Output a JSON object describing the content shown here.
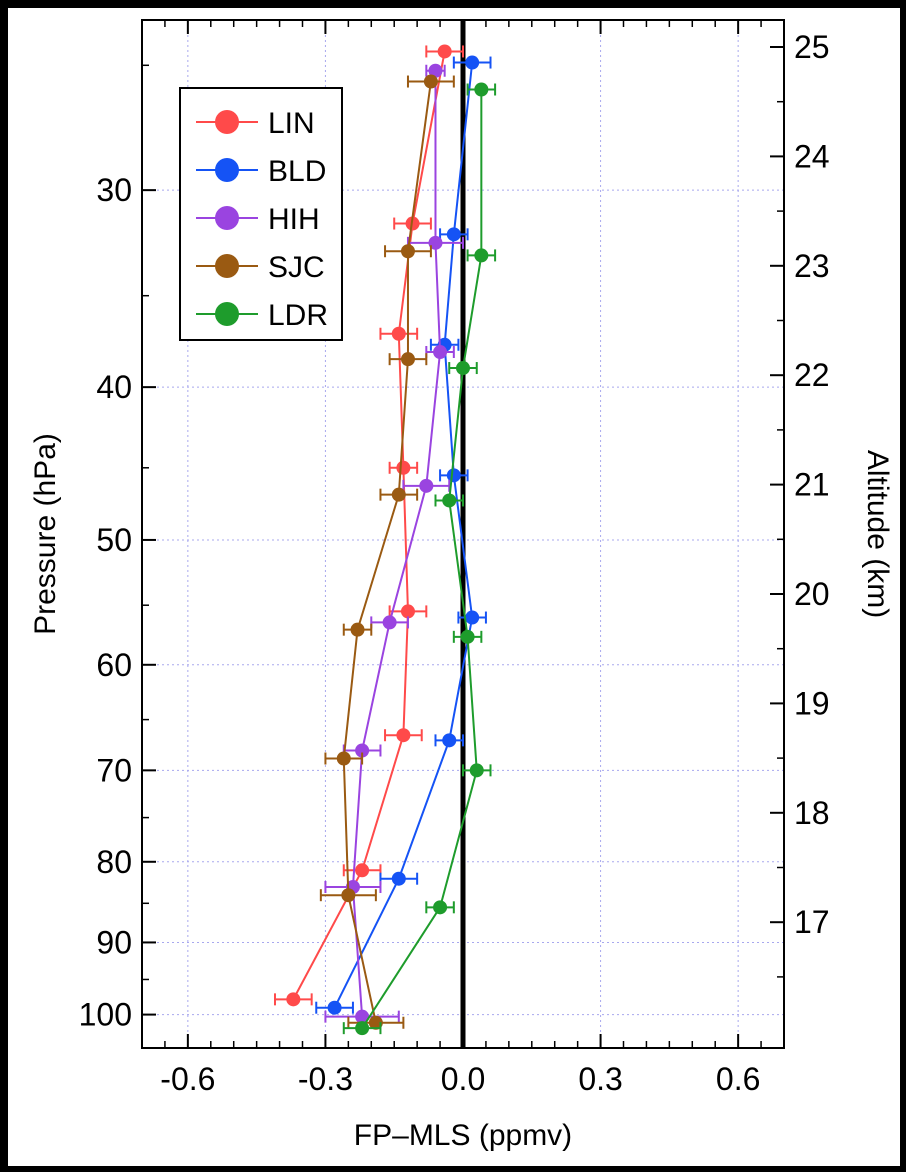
{
  "chart_data": {
    "type": "scatter",
    "xlabel": "FP–MLS (ppmv)",
    "ylabel": "Pressure (hPa)",
    "y2label": "Altitude (km)",
    "xlim": [
      -0.7,
      0.7
    ],
    "ylim_pressure": [
      23.4,
      105
    ],
    "y_scale": "log",
    "y2_scale": "linear",
    "x_ticks": [
      -0.6,
      -0.3,
      0.0,
      0.3,
      0.6
    ],
    "x_tick_labels": [
      "-0.6",
      "-0.3",
      "0.0",
      "0.3",
      "0.6"
    ],
    "y_ticks": [
      30,
      40,
      50,
      60,
      70,
      80,
      90,
      100
    ],
    "y_tick_labels": [
      "30",
      "40",
      "50",
      "60",
      "70",
      "80",
      "90",
      "100"
    ],
    "y2_ticks": [
      17,
      18,
      19,
      20,
      21,
      22,
      23,
      24,
      25
    ],
    "y2_tick_labels": [
      "17",
      "18",
      "19",
      "20",
      "21",
      "22",
      "23",
      "24",
      "25"
    ],
    "grid": true,
    "legend_position": "top-left",
    "zero_line": true,
    "series": [
      {
        "name": "LIN",
        "color": "#ff4a4a",
        "points": [
          {
            "x": -0.04,
            "p": 24.5,
            "err": 0.04
          },
          {
            "x": -0.11,
            "p": 31.5,
            "err": 0.04
          },
          {
            "x": -0.14,
            "p": 37.0,
            "err": 0.04
          },
          {
            "x": -0.13,
            "p": 45.0,
            "err": 0.03
          },
          {
            "x": -0.12,
            "p": 55.5,
            "err": 0.04
          },
          {
            "x": -0.13,
            "p": 66.5,
            "err": 0.04
          },
          {
            "x": -0.22,
            "p": 81.0,
            "err": 0.04
          },
          {
            "x": -0.37,
            "p": 97.8,
            "err": 0.04
          }
        ]
      },
      {
        "name": "BLD",
        "color": "#1553f5",
        "points": [
          {
            "x": 0.02,
            "p": 24.9,
            "err": 0.04
          },
          {
            "x": -0.02,
            "p": 32.0,
            "err": 0.03
          },
          {
            "x": -0.04,
            "p": 37.6,
            "err": 0.03
          },
          {
            "x": -0.02,
            "p": 45.5,
            "err": 0.03
          },
          {
            "x": 0.02,
            "p": 56.0,
            "err": 0.03
          },
          {
            "x": -0.03,
            "p": 67.0,
            "err": 0.03
          },
          {
            "x": -0.14,
            "p": 82.0,
            "err": 0.04
          },
          {
            "x": -0.28,
            "p": 99.0,
            "err": 0.04
          }
        ]
      },
      {
        "name": "HIH",
        "color": "#9a44e0",
        "points": [
          {
            "x": -0.06,
            "p": 25.2,
            "err": 0.02
          },
          {
            "x": -0.06,
            "p": 32.4,
            "err": 0.06
          },
          {
            "x": -0.05,
            "p": 38.0,
            "err": 0.03
          },
          {
            "x": -0.08,
            "p": 46.2,
            "err": 0.05
          },
          {
            "x": -0.16,
            "p": 56.4,
            "err": 0.04
          },
          {
            "x": -0.22,
            "p": 68.0,
            "err": 0.04
          },
          {
            "x": -0.24,
            "p": 83.0,
            "err": 0.06
          },
          {
            "x": -0.22,
            "p": 100.3,
            "err": 0.08
          }
        ]
      },
      {
        "name": "SJC",
        "color": "#9a5a12",
        "points": [
          {
            "x": -0.07,
            "p": 25.6,
            "err": 0.05
          },
          {
            "x": -0.12,
            "p": 32.8,
            "err": 0.05
          },
          {
            "x": -0.12,
            "p": 38.4,
            "err": 0.04
          },
          {
            "x": -0.14,
            "p": 46.8,
            "err": 0.04
          },
          {
            "x": -0.23,
            "p": 57.0,
            "err": 0.03
          },
          {
            "x": -0.26,
            "p": 68.8,
            "err": 0.04
          },
          {
            "x": -0.25,
            "p": 84.0,
            "err": 0.06
          },
          {
            "x": -0.19,
            "p": 101.2,
            "err": 0.06
          }
        ]
      },
      {
        "name": "LDR",
        "color": "#1e9c2c",
        "points": [
          {
            "x": 0.04,
            "p": 25.9,
            "err": 0.03
          },
          {
            "x": 0.04,
            "p": 33.0,
            "err": 0.03
          },
          {
            "x": 0.0,
            "p": 38.9,
            "err": 0.03
          },
          {
            "x": -0.03,
            "p": 47.2,
            "err": 0.03
          },
          {
            "x": 0.01,
            "p": 57.6,
            "err": 0.03
          },
          {
            "x": 0.03,
            "p": 70.0,
            "err": 0.03
          },
          {
            "x": -0.05,
            "p": 85.5,
            "err": 0.03
          },
          {
            "x": -0.22,
            "p": 102.0,
            "err": 0.04
          }
        ]
      }
    ]
  }
}
